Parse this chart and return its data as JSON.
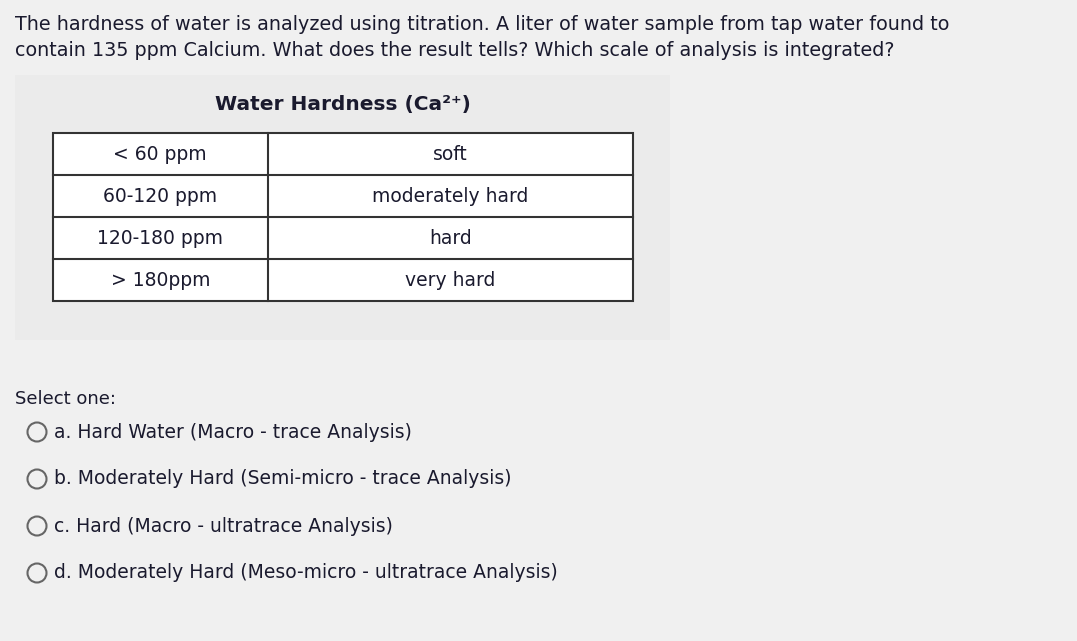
{
  "bg_color": "#f0f0f0",
  "table_bg_color": "#ebebeb",
  "table_inner_bg": "#ffffff",
  "question_text_line1": "The hardness of water is analyzed using titration. A liter of water sample from tap water found to",
  "question_text_line2": "contain 135 ppm Calcium. What does the result tells? Which scale of analysis is integrated?",
  "table_title": "Water Hardness (Ca²⁺)",
  "table_rows": [
    [
      "< 60 ppm",
      "soft"
    ],
    [
      "60-120 ppm",
      "moderately hard"
    ],
    [
      "120-180 ppm",
      "hard"
    ],
    [
      "> 180ppm",
      "very hard"
    ]
  ],
  "select_one_label": "Select one:",
  "options": [
    "a. Hard Water (Macro - trace Analysis)",
    "b. Moderately Hard (Semi-micro - trace Analysis)",
    "c. Hard (Macro - ultratrace Analysis)",
    "d. Moderately Hard (Meso-micro - ultratrace Analysis)"
  ],
  "text_color": "#1a1a2e",
  "table_border_color": "#333333",
  "font_size_question": 13.8,
  "font_size_table_title": 14.5,
  "font_size_table": 13.5,
  "font_size_select": 13.0,
  "font_size_options": 13.5,
  "circle_color": "#666666",
  "fig_width": 10.77,
  "fig_height": 6.41,
  "dpi": 100
}
